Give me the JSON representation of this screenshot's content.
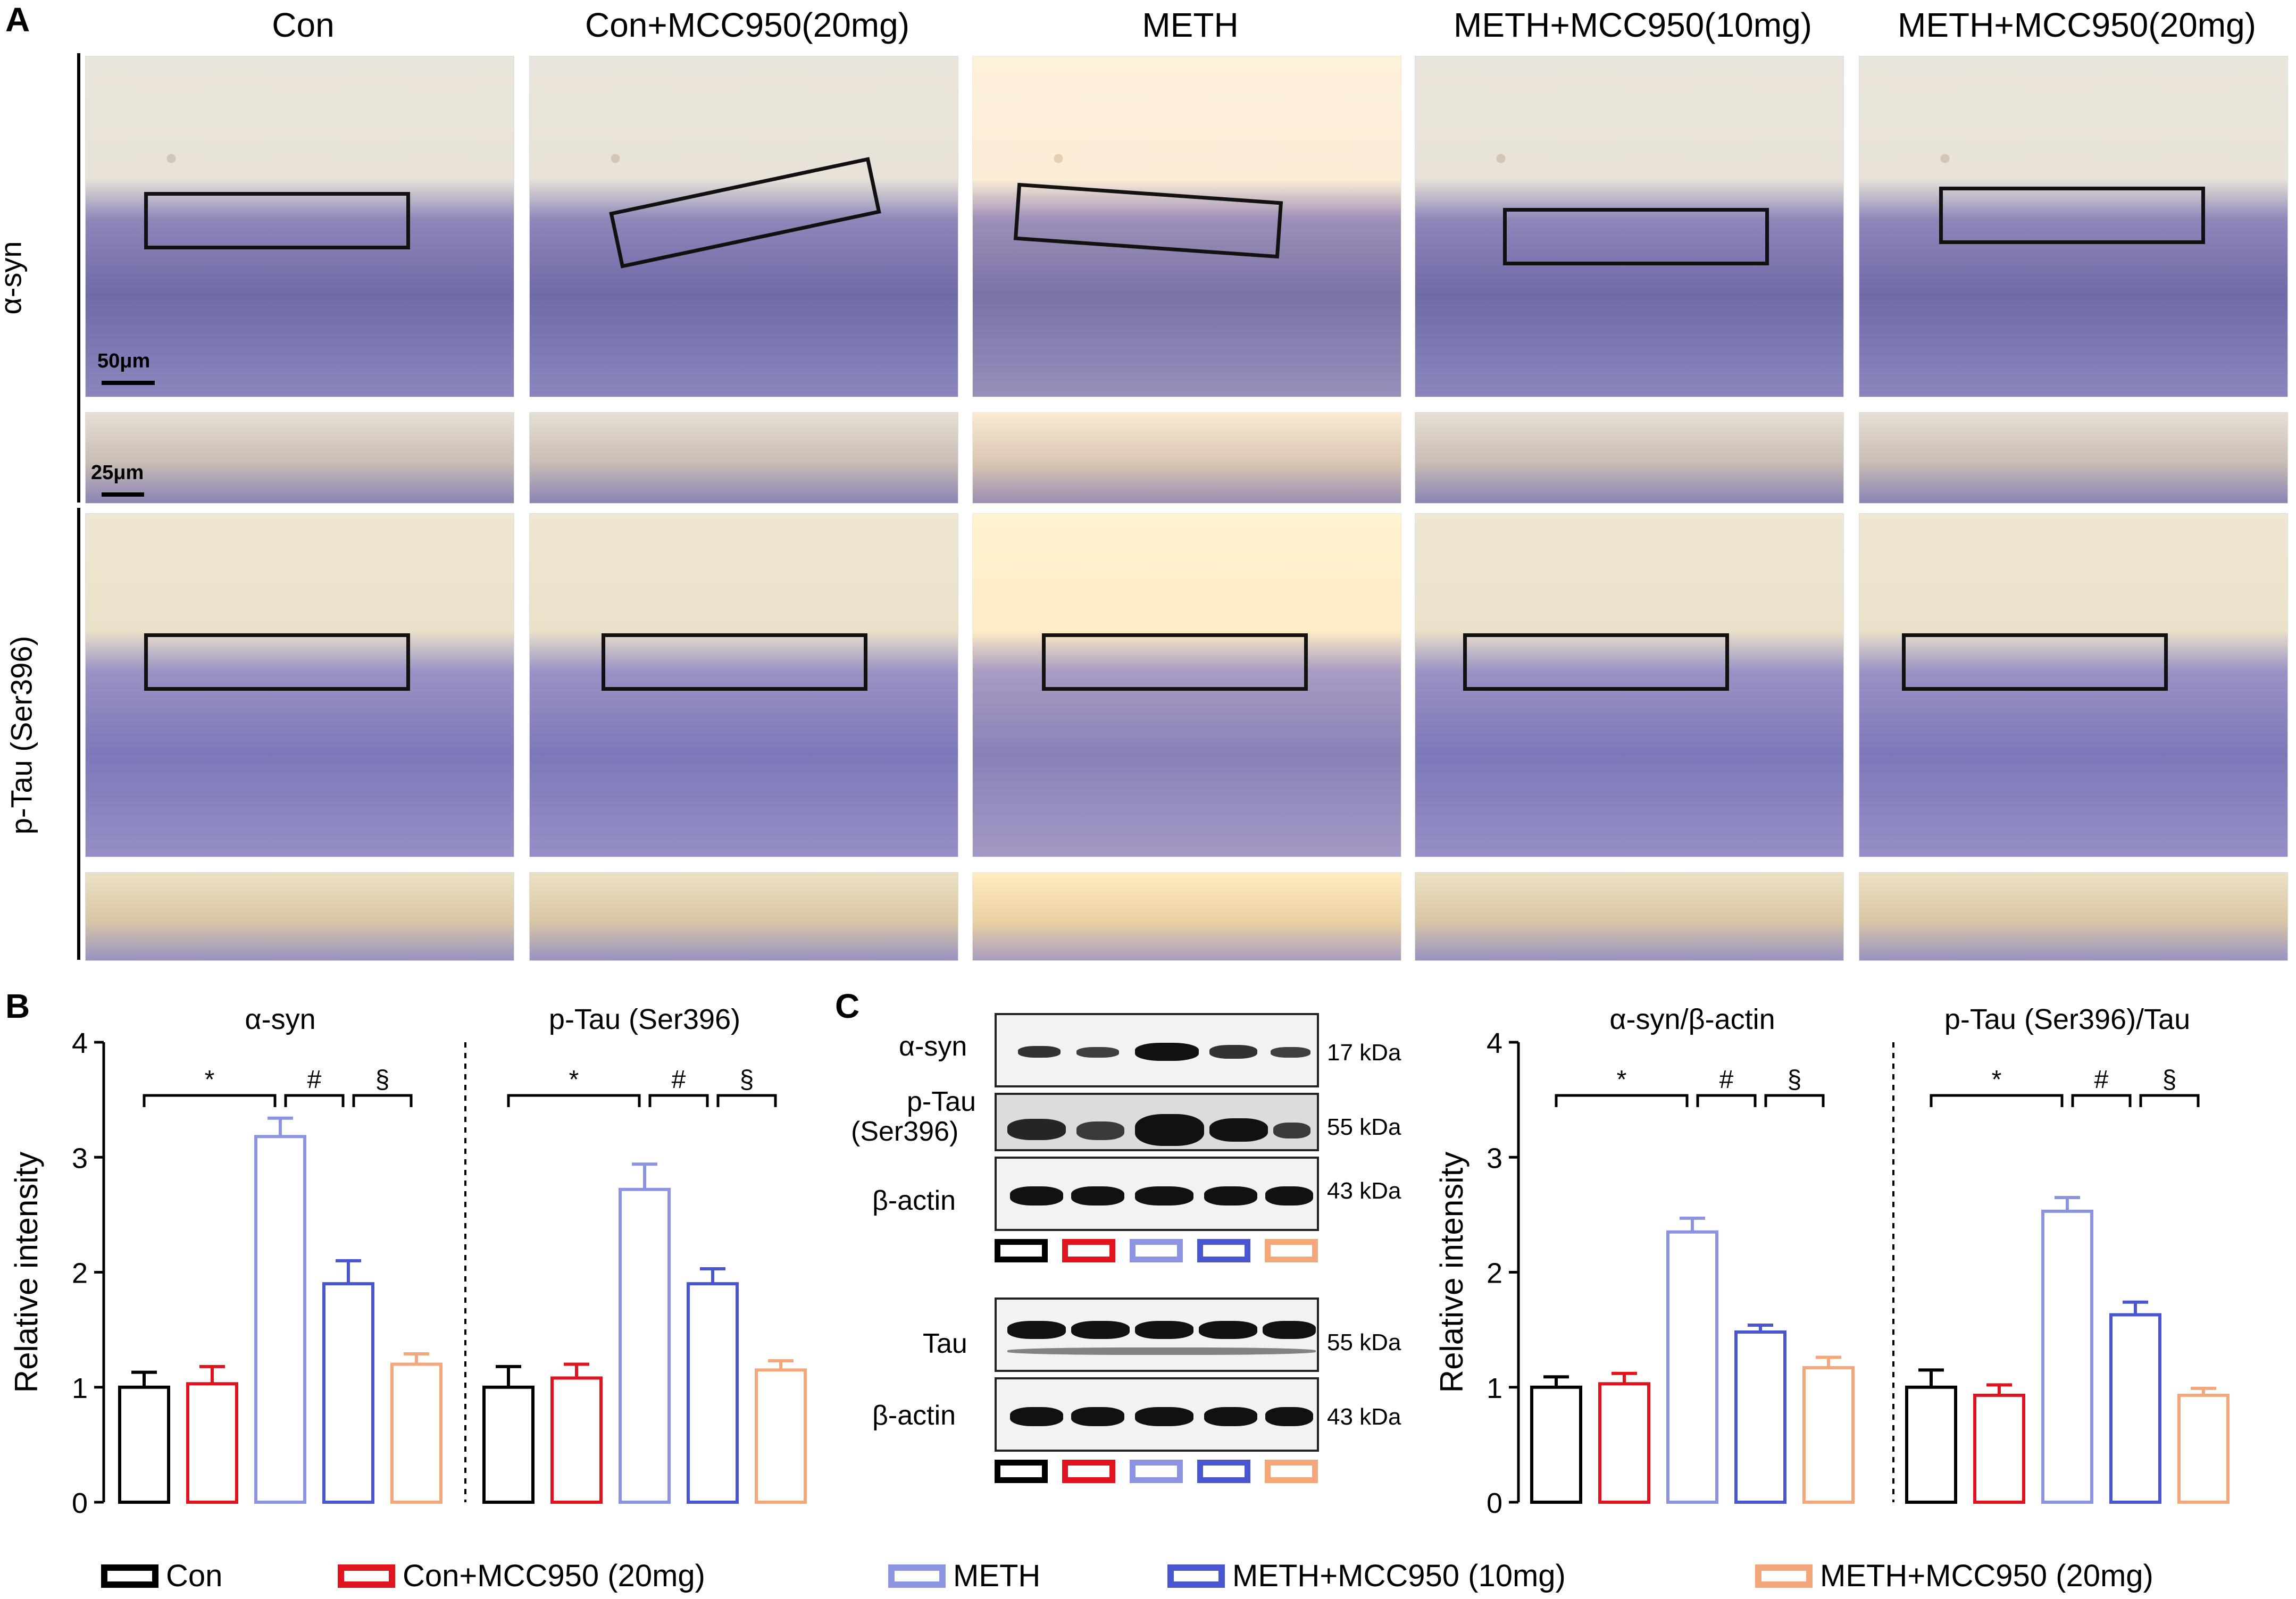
{
  "panels": {
    "a": "A",
    "b": "B",
    "c": "C"
  },
  "columns": [
    "Con",
    "Con+MCC950(20mg)",
    "METH",
    "METH+MCC950(10mg)",
    "METH+MCC950(20mg)"
  ],
  "rows": {
    "syn": "α-syn",
    "tau": "p-Tau (Ser396)"
  },
  "scalebars": {
    "main": "50μm",
    "zoom": "25μm"
  },
  "colors": {
    "con": "#000000",
    "con_mcc": "#e0141e",
    "meth": "#8c93e0",
    "meth_mcc10": "#4a55d0",
    "meth_mcc20": "#f5a77c"
  },
  "legend": [
    "Con",
    "Con+MCC950 (20mg)",
    "METH",
    "METH+MCC950 (10mg)",
    "METH+MCC950 (20mg)"
  ],
  "western": {
    "rows": [
      "α-syn",
      "p-Tau",
      "(Ser396)",
      "β-actin",
      "Tau",
      "β-actin"
    ],
    "kda": [
      "17 kDa",
      "55 kDa",
      "43 kDa",
      "55 kDa",
      "43 kDa"
    ]
  },
  "chart_data": [
    {
      "type": "bar",
      "title": "α-syn",
      "ylabel": "Relative intensity",
      "ylim": [
        0,
        4
      ],
      "yticks": [
        0,
        1,
        2,
        3,
        4
      ],
      "categories": [
        "Con",
        "Con+MCC950 (20mg)",
        "METH",
        "METH+MCC950 (10mg)",
        "METH+MCC950 (20mg)"
      ],
      "values": [
        1.0,
        1.03,
        3.18,
        1.9,
        1.2
      ],
      "errors": [
        0.13,
        0.15,
        0.16,
        0.2,
        0.09
      ],
      "significance": [
        "*",
        "#",
        "§"
      ]
    },
    {
      "type": "bar",
      "title": "p-Tau (Ser396)",
      "ylabel": "Relative intensity",
      "ylim": [
        0,
        4
      ],
      "yticks": [
        0,
        1,
        2,
        3,
        4
      ],
      "categories": [
        "Con",
        "Con+MCC950 (20mg)",
        "METH",
        "METH+MCC950 (10mg)",
        "METH+MCC950 (20mg)"
      ],
      "values": [
        1.0,
        1.08,
        2.72,
        1.9,
        1.15
      ],
      "errors": [
        0.18,
        0.12,
        0.22,
        0.13,
        0.08
      ],
      "significance": [
        "*",
        "#",
        "§"
      ]
    },
    {
      "type": "bar",
      "title": "α-syn/β-actin",
      "ylabel": "Relative intensity",
      "ylim": [
        0,
        4
      ],
      "yticks": [
        0,
        1,
        2,
        3,
        4
      ],
      "categories": [
        "Con",
        "Con+MCC950 (20mg)",
        "METH",
        "METH+MCC950 (10mg)",
        "METH+MCC950 (20mg)"
      ],
      "values": [
        1.0,
        1.03,
        2.35,
        1.48,
        1.17
      ],
      "errors": [
        0.09,
        0.09,
        0.12,
        0.06,
        0.09
      ],
      "significance": [
        "*",
        "#",
        "§"
      ]
    },
    {
      "type": "bar",
      "title": "p-Tau (Ser396)/Tau",
      "ylabel": "Relative intensity",
      "ylim": [
        0,
        4
      ],
      "yticks": [
        0,
        1,
        2,
        3,
        4
      ],
      "categories": [
        "Con",
        "Con+MCC950 (20mg)",
        "METH",
        "METH+MCC950 (10mg)",
        "METH+MCC950 (20mg)"
      ],
      "values": [
        1.0,
        0.93,
        2.53,
        1.63,
        0.93
      ],
      "errors": [
        0.15,
        0.09,
        0.12,
        0.11,
        0.06
      ],
      "significance": [
        "*",
        "#",
        "§"
      ]
    }
  ]
}
